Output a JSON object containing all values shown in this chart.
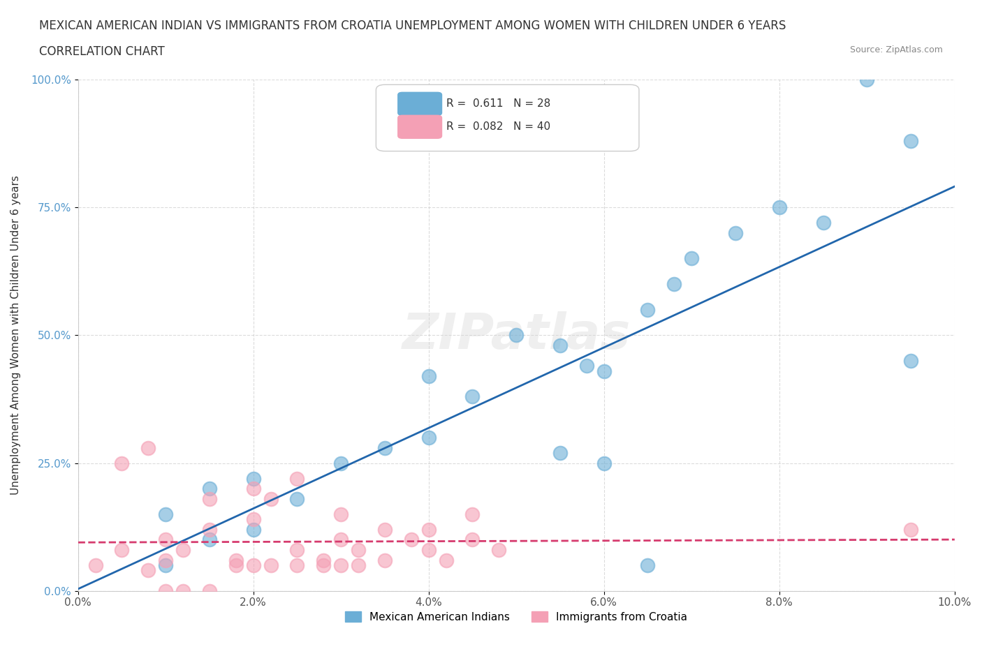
{
  "title_line1": "MEXICAN AMERICAN INDIAN VS IMMIGRANTS FROM CROATIA UNEMPLOYMENT AMONG WOMEN WITH CHILDREN UNDER 6 YEARS",
  "title_line2": "CORRELATION CHART",
  "source_text": "Source: ZipAtlas.com",
  "xlabel": "",
  "ylabel": "Unemployment Among Women with Children Under 6 years",
  "xlim": [
    0,
    0.1
  ],
  "ylim": [
    0,
    1.0
  ],
  "xticks": [
    0.0,
    0.02,
    0.04,
    0.06,
    0.08,
    0.1
  ],
  "xticklabels": [
    "0.0%",
    "2.0%",
    "4.0%",
    "6.0%",
    "8.0%",
    "10.0%"
  ],
  "yticks": [
    0.0,
    0.25,
    0.5,
    0.75,
    1.0
  ],
  "yticklabels": [
    "0.0%",
    "25.0%",
    "50.0%",
    "75.0%",
    "100.0%"
  ],
  "legend_r1": "R =  0.611",
  "legend_n1": "N = 28",
  "legend_r2": "R =  0.082",
  "legend_n2": "N = 40",
  "blue_color": "#6baed6",
  "pink_color": "#f4a0b5",
  "blue_line_color": "#2166ac",
  "pink_line_color": "#d63b6e",
  "watermark": "ZIPatlas",
  "blue_scatter_x": [
    0.01,
    0.015,
    0.01,
    0.02,
    0.025,
    0.015,
    0.02,
    0.03,
    0.035,
    0.04,
    0.045,
    0.04,
    0.05,
    0.055,
    0.058,
    0.06,
    0.065,
    0.068,
    0.07,
    0.075,
    0.08,
    0.085,
    0.09,
    0.095,
    0.095,
    0.055,
    0.06,
    0.065
  ],
  "blue_scatter_y": [
    0.05,
    0.1,
    0.15,
    0.12,
    0.18,
    0.2,
    0.22,
    0.25,
    0.28,
    0.3,
    0.38,
    0.42,
    0.5,
    0.48,
    0.44,
    0.43,
    0.55,
    0.6,
    0.65,
    0.7,
    0.75,
    0.72,
    1.0,
    0.88,
    0.45,
    0.27,
    0.25,
    0.05
  ],
  "pink_scatter_x": [
    0.002,
    0.005,
    0.008,
    0.01,
    0.01,
    0.012,
    0.015,
    0.015,
    0.018,
    0.02,
    0.02,
    0.022,
    0.025,
    0.025,
    0.028,
    0.03,
    0.03,
    0.032,
    0.035,
    0.035,
    0.038,
    0.04,
    0.04,
    0.042,
    0.045,
    0.045,
    0.048,
    0.005,
    0.008,
    0.01,
    0.012,
    0.015,
    0.018,
    0.02,
    0.022,
    0.025,
    0.028,
    0.03,
    0.032,
    0.095
  ],
  "pink_scatter_y": [
    0.05,
    0.08,
    0.04,
    0.06,
    0.1,
    0.08,
    0.12,
    0.18,
    0.06,
    0.14,
    0.2,
    0.18,
    0.08,
    0.22,
    0.06,
    0.1,
    0.15,
    0.08,
    0.12,
    0.06,
    0.1,
    0.08,
    0.12,
    0.06,
    0.1,
    0.15,
    0.08,
    0.25,
    0.28,
    0.0,
    0.0,
    0.0,
    0.05,
    0.05,
    0.05,
    0.05,
    0.05,
    0.05,
    0.05,
    0.12
  ]
}
